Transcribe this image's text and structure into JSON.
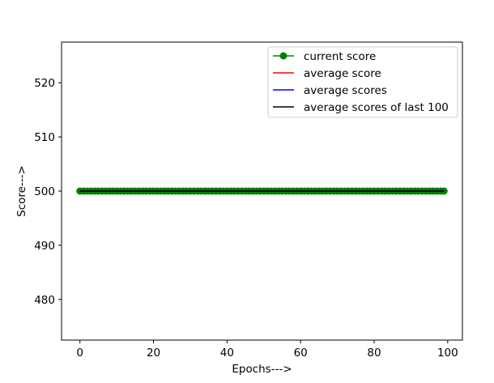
{
  "chart_data": {
    "type": "line",
    "xlabel": "Epochs--->",
    "ylabel": "Score--->",
    "xlim": [
      -5,
      104
    ],
    "ylim": [
      472.5,
      527.5
    ],
    "x_ticks": [
      0,
      20,
      40,
      60,
      80,
      100
    ],
    "y_ticks": [
      480,
      490,
      500,
      510,
      520
    ],
    "x_tick_labels": [
      "0",
      "20",
      "40",
      "60",
      "80",
      "100"
    ],
    "y_tick_labels": [
      "480",
      "490",
      "500",
      "510",
      "520"
    ],
    "x_start": 0,
    "x_end": 99,
    "legend_position": "upper right",
    "grid": false,
    "series": [
      {
        "name": "current score",
        "color": "#008000",
        "marker": "circle",
        "y_constant": 500
      },
      {
        "name": "average score",
        "color": "#ff0000",
        "marker": "none",
        "y_constant": 500
      },
      {
        "name": "average scores",
        "color": "#0000ff",
        "marker": "none",
        "y_constant": 500
      },
      {
        "name": "average scores of last 100",
        "color": "#000000",
        "marker": "none",
        "y_constant": 500
      }
    ]
  }
}
